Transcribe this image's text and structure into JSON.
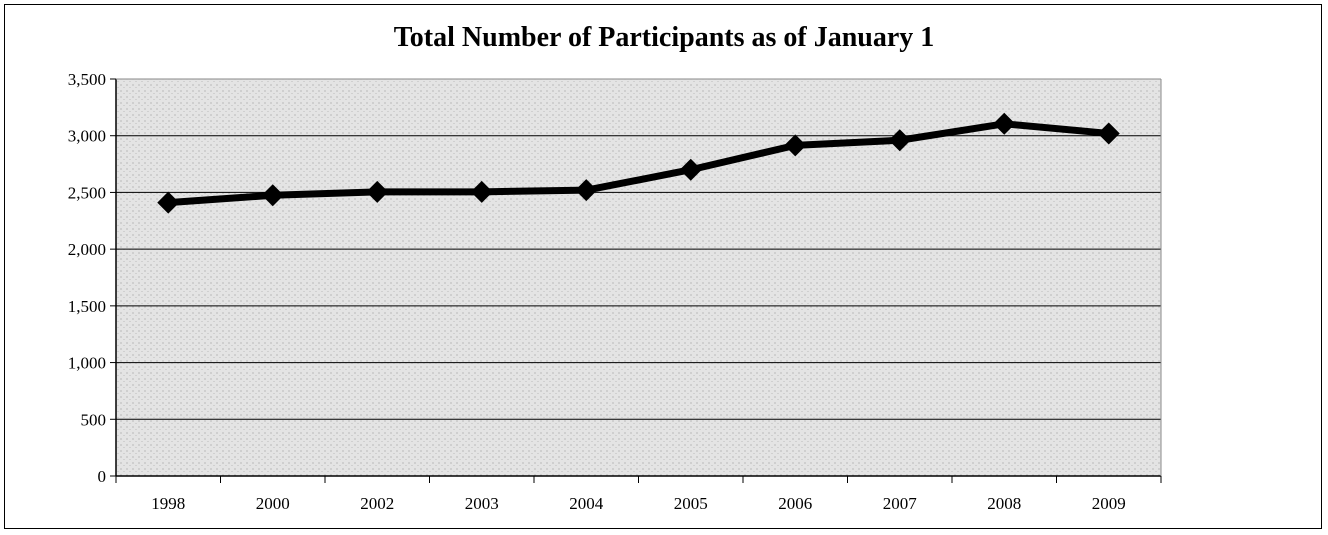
{
  "chart_data": {
    "type": "line",
    "title": "Total Number of Participants as of January 1",
    "xlabel": "",
    "ylabel": "",
    "categories": [
      "1998",
      "2000",
      "2002",
      "2003",
      "2004",
      "2005",
      "2006",
      "2007",
      "2008",
      "2009"
    ],
    "series": [
      {
        "values": [
          2410,
          2475,
          2505,
          2505,
          2520,
          2700,
          2915,
          2960,
          3105,
          3020
        ]
      }
    ],
    "ylim": [
      0,
      3500
    ],
    "yticks": [
      0,
      500,
      1000,
      1500,
      2000,
      2500,
      3000,
      3500
    ],
    "ytick_labels": [
      "0",
      "500",
      "1,000",
      "1,500",
      "2,000",
      "2,500",
      "3,000",
      "3,500"
    ],
    "grid": true,
    "legend": "none",
    "marker": "diamond",
    "line_color": "#000000",
    "plot_background": "#d9d9d9"
  }
}
